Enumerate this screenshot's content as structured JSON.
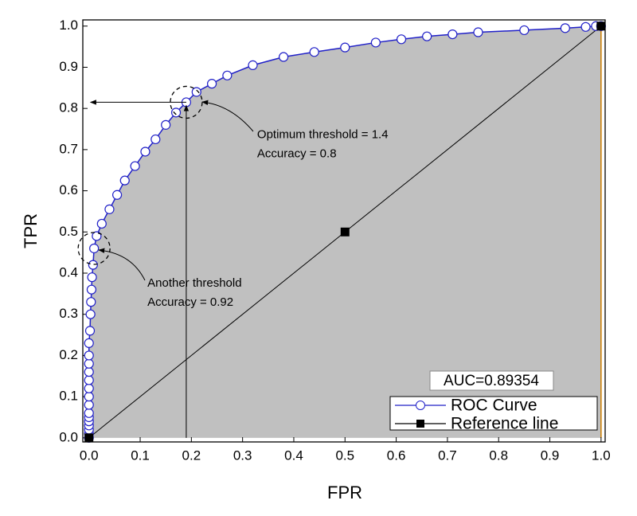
{
  "chart_data": {
    "type": "line",
    "x_label": "FPR",
    "y_label": "TPR",
    "xlim": [
      -0.012,
      1.008
    ],
    "ylim": [
      -0.01,
      1.015
    ],
    "xticks": [
      {
        "value": 0,
        "label": "0.0"
      },
      0.1,
      0.2,
      0.3,
      0.4,
      0.5,
      0.6,
      0.7,
      0.8,
      0.9,
      {
        "value": 1,
        "label": "1.0"
      }
    ],
    "yticks": [
      {
        "value": 0,
        "label": "0.0"
      },
      0.1,
      0.2,
      0.3,
      0.4,
      0.5,
      0.6,
      0.7,
      0.8,
      0.9,
      {
        "value": 1,
        "label": "1.0"
      }
    ],
    "fill_color": "#c0c0c0",
    "legend": "lower right",
    "auc_label": "AUC=0.89354",
    "series": [
      {
        "name": "ROC Curve",
        "color": "#2020c8",
        "marker": "circle",
        "x": [
          0,
          0,
          0,
          0,
          0,
          0,
          0,
          0,
          0,
          0,
          0,
          0,
          0,
          0,
          0,
          0.002,
          0.003,
          0.004,
          0.005,
          0.006,
          0.008,
          0.01,
          0.015,
          0.025,
          0.04,
          0.055,
          0.07,
          0.09,
          0.11,
          0.13,
          0.15,
          0.17,
          0.19,
          0.21,
          0.24,
          0.27,
          0.32,
          0.38,
          0.44,
          0.5,
          0.56,
          0.61,
          0.66,
          0.71,
          0.76,
          0.85,
          0.93,
          0.97,
          0.99,
          1.0
        ],
        "values": [
          0,
          0.01,
          0.02,
          0.03,
          0.04,
          0.05,
          0.06,
          0.08,
          0.1,
          0.12,
          0.14,
          0.16,
          0.18,
          0.2,
          0.23,
          0.26,
          0.3,
          0.33,
          0.36,
          0.39,
          0.42,
          0.46,
          0.49,
          0.52,
          0.555,
          0.59,
          0.625,
          0.66,
          0.695,
          0.725,
          0.76,
          0.79,
          0.815,
          0.84,
          0.86,
          0.88,
          0.905,
          0.925,
          0.937,
          0.948,
          0.96,
          0.968,
          0.975,
          0.98,
          0.985,
          0.99,
          0.995,
          0.998,
          1.0,
          1.0
        ]
      },
      {
        "name": "Reference line",
        "color": "#000000",
        "marker": "square",
        "x": [
          0,
          0.5,
          1
        ],
        "values": [
          0,
          0.5,
          1
        ]
      }
    ],
    "annotations": [
      {
        "text": [
          "Optimum threshold = 1.4",
          "Accuracy = 0.8"
        ],
        "x": 0.19,
        "y": 0.815
      },
      {
        "text": [
          "Another threshold",
          "Accuracy = 0.92"
        ],
        "x": 0.01,
        "y": 0.46
      }
    ]
  }
}
